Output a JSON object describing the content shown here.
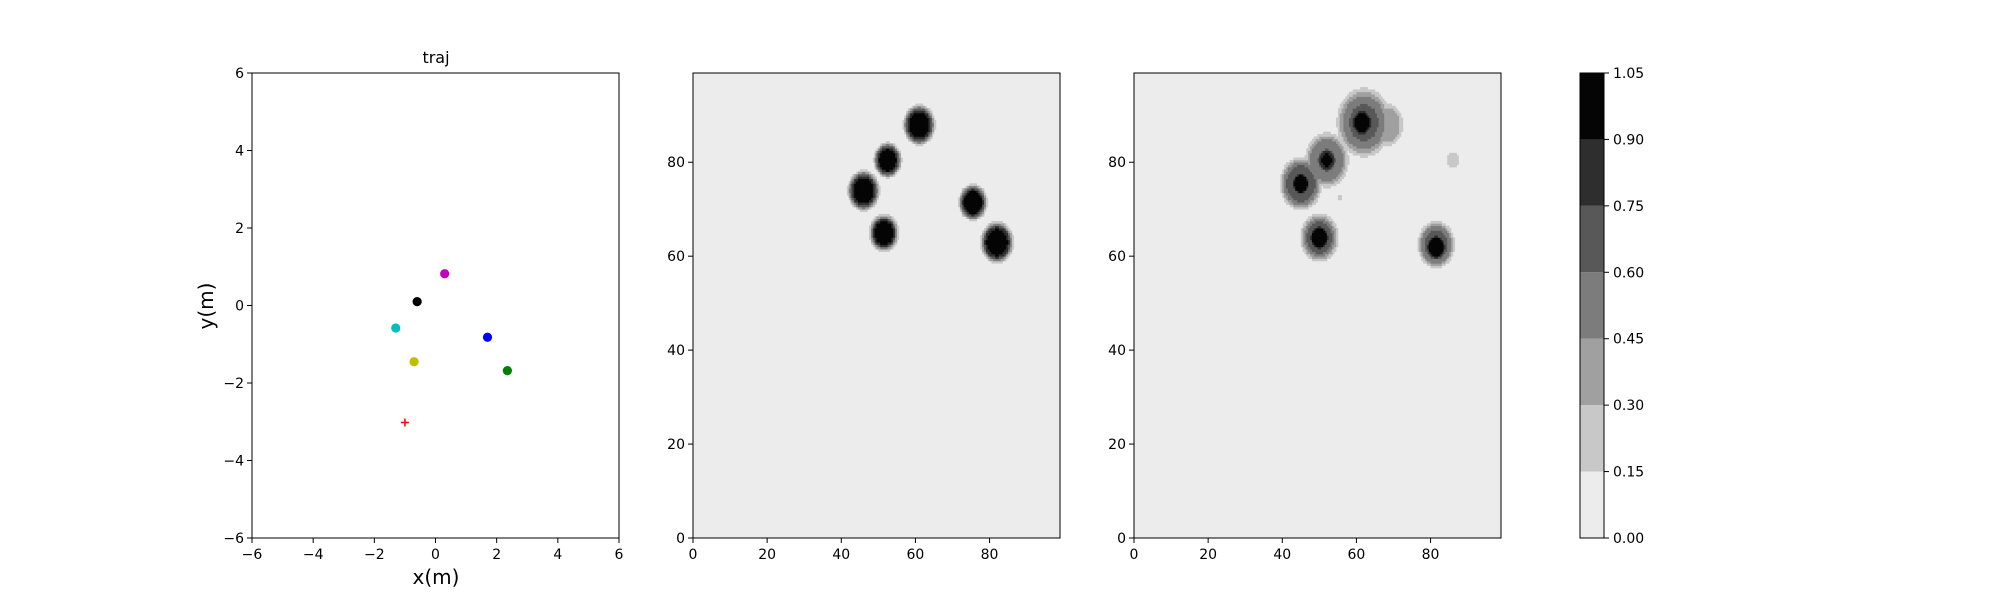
{
  "chart_data": [
    {
      "type": "scatter",
      "title": "traj",
      "xlabel": "x(m)",
      "ylabel": "y(m)",
      "xlim": [
        -6,
        6
      ],
      "ylim": [
        -6,
        6
      ],
      "xticks": [
        -6,
        -4,
        -2,
        0,
        2,
        4,
        6
      ],
      "yticks": [
        -6,
        -4,
        -2,
        0,
        2,
        4,
        6
      ],
      "grid": false,
      "points": [
        {
          "x": 0.3,
          "y": 0.82,
          "color": "#bf00bf",
          "marker": "circle"
        },
        {
          "x": -0.6,
          "y": 0.1,
          "color": "#000000",
          "marker": "circle"
        },
        {
          "x": -1.3,
          "y": -0.58,
          "color": "#00bfbf",
          "marker": "circle"
        },
        {
          "x": 1.7,
          "y": -0.82,
          "color": "#0000ff",
          "marker": "circle"
        },
        {
          "x": -0.7,
          "y": -1.45,
          "color": "#bfbf00",
          "marker": "circle"
        },
        {
          "x": 2.35,
          "y": -1.68,
          "color": "#008000",
          "marker": "circle"
        },
        {
          "x": -1.0,
          "y": -3.02,
          "color": "#ff0000",
          "marker": "plus"
        }
      ]
    },
    {
      "type": "heatmap",
      "title": "",
      "xlim": [
        0,
        99
      ],
      "ylim": [
        0,
        99
      ],
      "xticks": [
        0,
        20,
        40,
        60,
        80
      ],
      "yticks": [
        0,
        20,
        40,
        60,
        80
      ],
      "background_value": 0.0,
      "blobs": [
        {
          "x": 61,
          "y": 88,
          "r": 3.7,
          "peak": 1.0
        },
        {
          "x": 52.5,
          "y": 80.5,
          "r": 3.2,
          "peak": 1.0
        },
        {
          "x": 46,
          "y": 74,
          "r": 3.7,
          "peak": 1.0
        },
        {
          "x": 75.5,
          "y": 71.5,
          "r": 3.3,
          "peak": 1.0
        },
        {
          "x": 51.5,
          "y": 65,
          "r": 3.4,
          "peak": 1.0
        },
        {
          "x": 82,
          "y": 63,
          "r": 3.8,
          "peak": 1.0
        }
      ]
    },
    {
      "type": "heatmap",
      "title": "",
      "xlim": [
        0,
        99
      ],
      "ylim": [
        0,
        99
      ],
      "xticks": [
        0,
        20,
        40,
        60,
        80
      ],
      "yticks": [
        0,
        20,
        40,
        60,
        80
      ],
      "background_value": 0.0,
      "blobs": [
        {
          "x": 62,
          "y": 88.5,
          "r": 6.5,
          "peak": 0.62
        },
        {
          "x": 61.5,
          "y": 88.5,
          "r": 2.8,
          "peak": 0.98
        },
        {
          "x": 68,
          "y": 88,
          "r": 4.2,
          "peak": 0.42
        },
        {
          "x": 52,
          "y": 80.5,
          "r": 5.2,
          "peak": 0.6
        },
        {
          "x": 52,
          "y": 80.5,
          "r": 2.5,
          "peak": 0.92
        },
        {
          "x": 45,
          "y": 75.5,
          "r": 5.0,
          "peak": 0.7
        },
        {
          "x": 45,
          "y": 75.5,
          "r": 2.4,
          "peak": 1.04
        },
        {
          "x": 50,
          "y": 64,
          "r": 4.5,
          "peak": 0.68
        },
        {
          "x": 50,
          "y": 64,
          "r": 2.6,
          "peak": 1.04
        },
        {
          "x": 81.5,
          "y": 62.5,
          "r": 4.4,
          "peak": 0.66
        },
        {
          "x": 81.5,
          "y": 62,
          "r": 2.6,
          "peak": 1.04
        },
        {
          "x": 86,
          "y": 80.5,
          "r": 1.7,
          "peak": 0.26
        },
        {
          "x": 55.5,
          "y": 72.5,
          "r": 0.8,
          "peak": 0.22
        }
      ]
    },
    {
      "type": "colorbar",
      "boundaries": [
        0.0,
        0.15,
        0.3,
        0.45,
        0.6,
        0.75,
        0.9,
        1.05
      ],
      "tick_labels": [
        "0.00",
        "0.15",
        "0.30",
        "0.45",
        "0.60",
        "0.75",
        "0.90",
        "1.05"
      ],
      "colors": [
        "#ececec",
        "#c8c8c8",
        "#a0a0a0",
        "#7c7c7c",
        "#585858",
        "#2e2e2e",
        "#050505"
      ]
    }
  ]
}
